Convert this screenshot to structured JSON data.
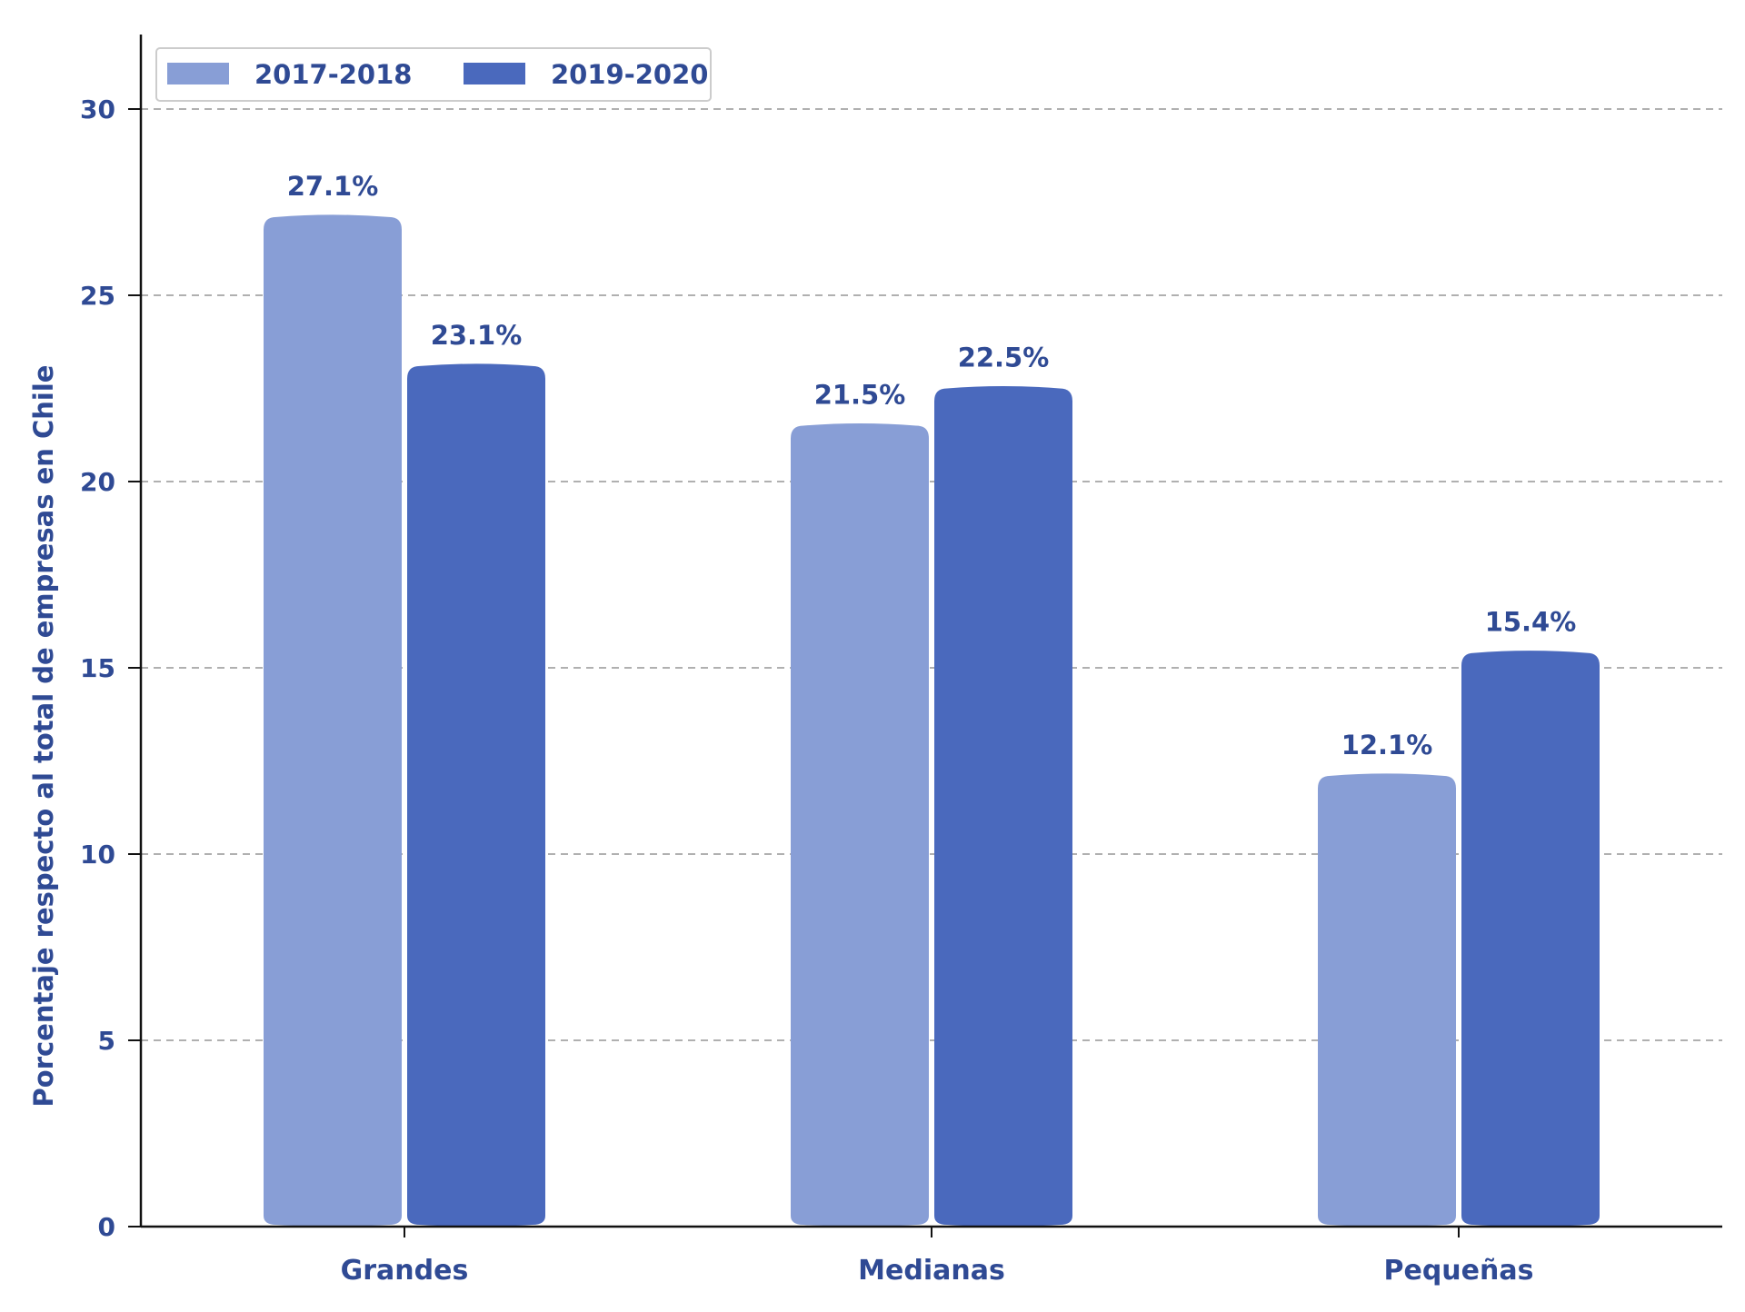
{
  "chart_data": {
    "type": "bar",
    "title": "",
    "xlabel": "",
    "ylabel": "Porcentaje respecto al total de empresas en Chile",
    "categories": [
      "Grandes",
      "Medianas",
      "Pequeñas"
    ],
    "series": [
      {
        "name": "2017-2018",
        "values": [
          27.1,
          21.5,
          12.1
        ],
        "labels": [
          "27.1%",
          "21.5%",
          "12.1%"
        ],
        "color": "#889ed6"
      },
      {
        "name": "2019-2020",
        "values": [
          23.1,
          22.5,
          15.4
        ],
        "labels": [
          "23.1%",
          "22.5%",
          "15.4%"
        ],
        "color": "#4a69bd"
      }
    ],
    "ylim": [
      0,
      32
    ],
    "yticks": [
      0,
      5,
      10,
      15,
      20,
      25,
      30
    ],
    "ytick_labels": [
      "0",
      "5",
      "10",
      "15",
      "20",
      "25",
      "30"
    ],
    "grid": true,
    "legend_position": "top-left",
    "text_color": "#2f4a94",
    "axis_color": "#111111",
    "grid_color": "#b0b0b0"
  }
}
